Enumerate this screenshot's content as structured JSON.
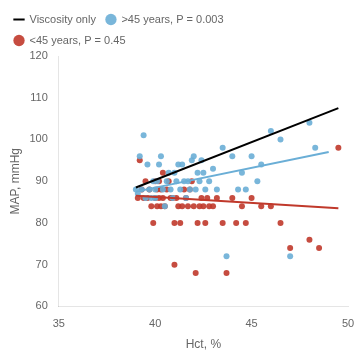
{
  "chart_data": {
    "type": "scatter",
    "xlabel": "Hct, %",
    "ylabel": "MAP, mmHg",
    "xlim": [
      35,
      50
    ],
    "ylim": [
      60,
      120
    ],
    "xticks": [
      35,
      40,
      45,
      50
    ],
    "yticks": [
      60,
      70,
      80,
      90,
      100,
      110,
      120
    ],
    "grid": false,
    "legend": "upper left",
    "series": [
      {
        "name": "<45 years, P = 0.45",
        "type": "scatter",
        "color": "#C0392B",
        "x": [
          39.1,
          39.2,
          39.3,
          39.4,
          39.5,
          39.6,
          39.7,
          39.8,
          39.9,
          40.0,
          40.0,
          40.1,
          40.1,
          40.2,
          40.2,
          40.3,
          40.3,
          40.4,
          40.4,
          40.5,
          40.6,
          40.7,
          40.8,
          40.9,
          41.0,
          41.0,
          41.1,
          41.2,
          41.3,
          41.4,
          41.5,
          41.6,
          41.7,
          41.8,
          41.9,
          42.0,
          42.1,
          42.2,
          42.3,
          42.4,
          42.5,
          42.6,
          42.7,
          42.8,
          43.0,
          43.2,
          43.5,
          43.7,
          44.0,
          44.2,
          44.5,
          44.7,
          45.0,
          45.5,
          46.0,
          46.5,
          47.0,
          48.0,
          48.5,
          49.5
        ],
        "values": [
          86.0,
          95.0,
          88.0,
          86.0,
          90.0,
          86.0,
          88.0,
          84.0,
          80.0,
          90.0,
          86.0,
          88.0,
          84.0,
          90.0,
          86.0,
          88.0,
          84.0,
          92.0,
          86.0,
          84.0,
          88.0,
          90.0,
          86.0,
          86.0,
          80.0,
          70.0,
          86.0,
          84.0,
          80.0,
          84.0,
          88.0,
          86.0,
          84.0,
          88.0,
          90.0,
          84.0,
          68.0,
          80.0,
          84.0,
          86.0,
          84.0,
          80.0,
          86.0,
          84.0,
          84.0,
          86.0,
          80.0,
          68.0,
          86.0,
          80.0,
          84.0,
          80.0,
          86.0,
          84.0,
          84.0,
          80.0,
          74.0,
          76.0,
          74.0,
          98.0
        ]
      },
      {
        "name": ">45 years, P = 0.003",
        "type": "scatter",
        "color": "#6aaed6",
        "x": [
          39.0,
          39.1,
          39.2,
          39.3,
          39.4,
          39.5,
          39.6,
          39.7,
          39.8,
          39.9,
          40.0,
          40.0,
          40.1,
          40.2,
          40.3,
          40.4,
          40.5,
          40.6,
          40.7,
          40.8,
          40.9,
          41.0,
          41.1,
          41.2,
          41.3,
          41.4,
          41.5,
          41.6,
          41.7,
          41.8,
          41.9,
          42.0,
          42.1,
          42.2,
          42.3,
          42.4,
          42.5,
          42.6,
          42.8,
          43.0,
          43.2,
          43.5,
          43.7,
          44.0,
          44.3,
          44.5,
          44.7,
          45.0,
          45.3,
          45.5,
          46.0,
          46.5,
          47.0,
          48.0,
          48.3
        ],
        "values": [
          88.0,
          87.0,
          96.0,
          88.0,
          101.0,
          86.0,
          94.0,
          88.0,
          86.0,
          90.0,
          88.0,
          86.0,
          90.0,
          94.0,
          96.0,
          88.0,
          84.0,
          90.0,
          92.0,
          88.0,
          86.0,
          92.0,
          90.0,
          94.0,
          88.0,
          94.0,
          90.0,
          86.0,
          90.0,
          88.0,
          95.0,
          96.0,
          88.0,
          92.0,
          90.0,
          95.0,
          92.0,
          88.0,
          90.0,
          93.0,
          88.0,
          98.0,
          72.0,
          96.0,
          88.0,
          92.0,
          88.0,
          96.0,
          90.0,
          94.0,
          102.0,
          100.0,
          72.0,
          104.0,
          98.0
        ]
      },
      {
        "type": "line",
        "color": "#C0392B",
        "x": [
          39.0,
          49.5
        ],
        "values": [
          86.5,
          83.5
        ]
      },
      {
        "type": "line",
        "color": "#6aaed6",
        "x": [
          39.0,
          49.0
        ],
        "values": [
          87.5,
          97.0
        ]
      },
      {
        "name": "Viscosity only",
        "type": "line",
        "color": "#000000",
        "x": [
          39.0,
          49.5
        ],
        "values": [
          88.5,
          107.5
        ]
      }
    ]
  }
}
